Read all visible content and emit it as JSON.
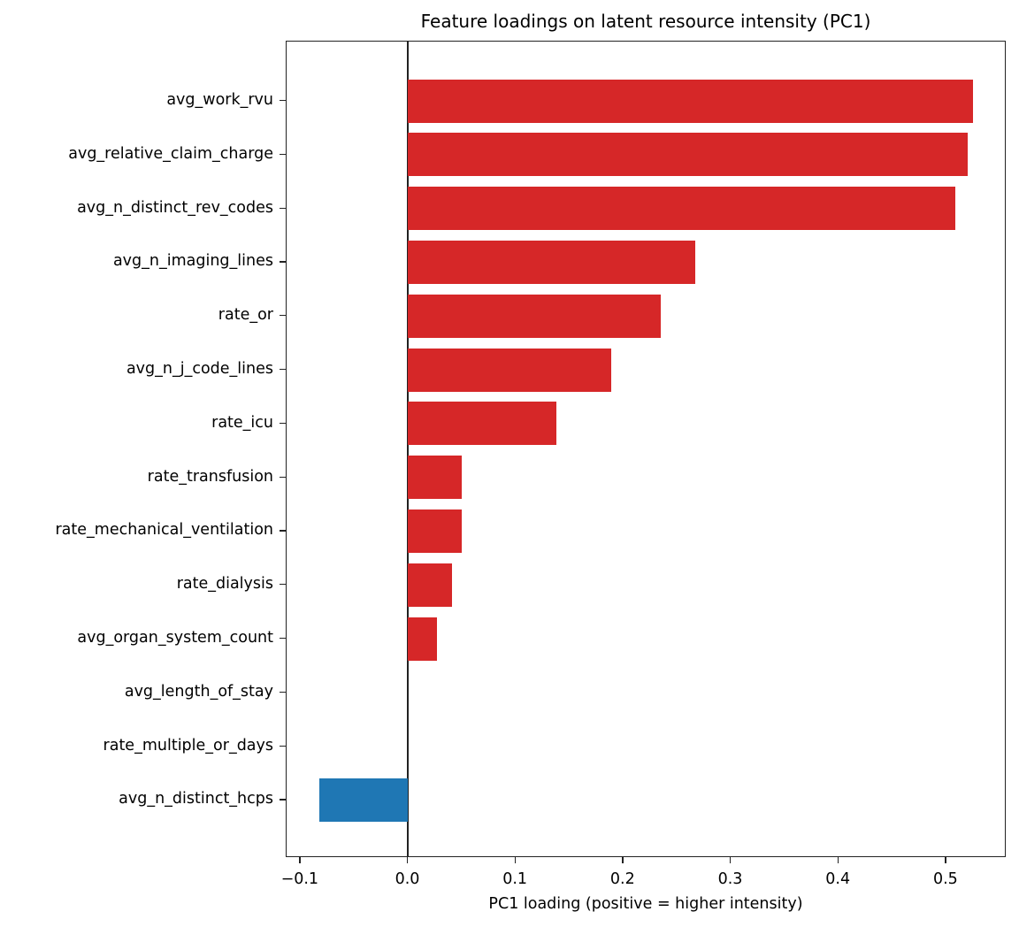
{
  "chart_data": {
    "type": "bar",
    "orientation": "horizontal",
    "title": "Feature loadings on latent resource intensity (PC1)",
    "xlabel": "PC1 loading (positive = higher intensity)",
    "ylabel": "",
    "xlim": [
      -0.113,
      0.556
    ],
    "xticks": [
      -0.1,
      0.0,
      0.1,
      0.2,
      0.3,
      0.4,
      0.5
    ],
    "xtick_labels": [
      "−0.1",
      "0.0",
      "0.1",
      "0.2",
      "0.3",
      "0.4",
      "0.5"
    ],
    "grid": false,
    "legend": null,
    "reference_line": {
      "x": 0.0,
      "color": "#222222"
    },
    "colors": {
      "positive": "#d62728",
      "negative": "#1f77b4"
    },
    "categories": [
      "avg_work_rvu",
      "avg_relative_claim_charge",
      "avg_n_distinct_rev_codes",
      "avg_n_imaging_lines",
      "rate_or",
      "avg_n_j_code_lines",
      "rate_icu",
      "rate_transfusion",
      "rate_mechanical_ventilation",
      "rate_dialysis",
      "avg_organ_system_count",
      "avg_length_of_stay",
      "rate_multiple_or_days",
      "avg_n_distinct_hcps"
    ],
    "values": [
      0.525,
      0.52,
      0.508,
      0.267,
      0.235,
      0.189,
      0.138,
      0.05,
      0.05,
      0.041,
      0.027,
      0.0,
      0.0,
      -0.083
    ]
  }
}
